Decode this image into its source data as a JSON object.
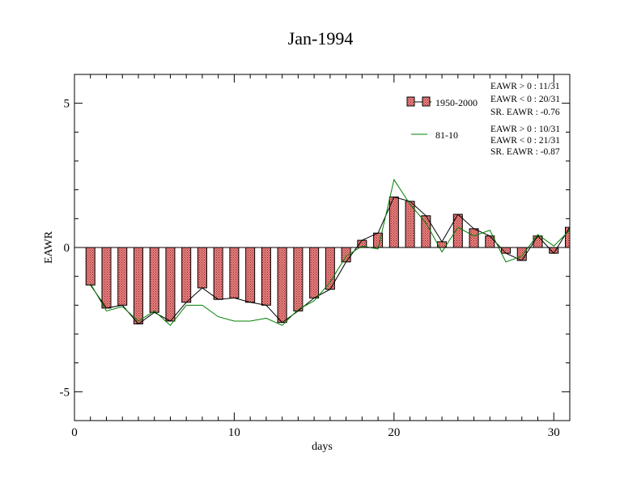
{
  "chart_data": {
    "type": "bar",
    "title": "Jan-1994",
    "xlabel": "days",
    "ylabel": "EAWR",
    "xlim": [
      0,
      31
    ],
    "ylim": [
      -6,
      6
    ],
    "xticks": [
      0,
      10,
      20,
      30
    ],
    "yticks": [
      -5,
      0,
      5
    ],
    "x": [
      1,
      2,
      3,
      4,
      5,
      6,
      7,
      8,
      9,
      10,
      11,
      12,
      13,
      14,
      15,
      16,
      17,
      18,
      19,
      20,
      21,
      22,
      23,
      24,
      25,
      26,
      27,
      28,
      29,
      30,
      31
    ],
    "series": [
      {
        "name": "1950-2000",
        "kind": "bar",
        "color": "#f08080",
        "values": [
          -1.3,
          -2.1,
          -2.0,
          -2.65,
          -2.25,
          -2.55,
          -1.9,
          -1.4,
          -1.8,
          -1.75,
          -1.9,
          -2.0,
          -2.6,
          -2.2,
          -1.75,
          -1.45,
          -0.5,
          0.25,
          0.5,
          1.75,
          1.6,
          1.1,
          0.2,
          1.15,
          0.65,
          0.4,
          -0.2,
          -0.45,
          0.4,
          -0.2,
          0.7
        ]
      },
      {
        "name": "81-10",
        "kind": "line",
        "color": "#008000",
        "values": [
          -1.25,
          -2.2,
          -2.05,
          -2.55,
          -2.2,
          -2.7,
          -2.0,
          -2.0,
          -2.4,
          -2.55,
          -2.55,
          -2.45,
          -2.7,
          -2.15,
          -1.85,
          -1.2,
          -0.3,
          0.05,
          -0.05,
          2.35,
          1.5,
          0.85,
          -0.15,
          0.7,
          0.4,
          0.6,
          -0.5,
          -0.3,
          0.45,
          0.05,
          0.6
        ]
      }
    ],
    "stats": {
      "s1": [
        "EAWR > 0 : 11/31",
        "EAWR < 0 : 20/31",
        "SR. EAWR : -0.76"
      ],
      "s2": [
        "EAWR > 0 : 10/31",
        "EAWR < 0 : 21/31",
        "SR. EAWR : -0.87"
      ]
    },
    "legend_position": "top-right",
    "grid": false
  }
}
